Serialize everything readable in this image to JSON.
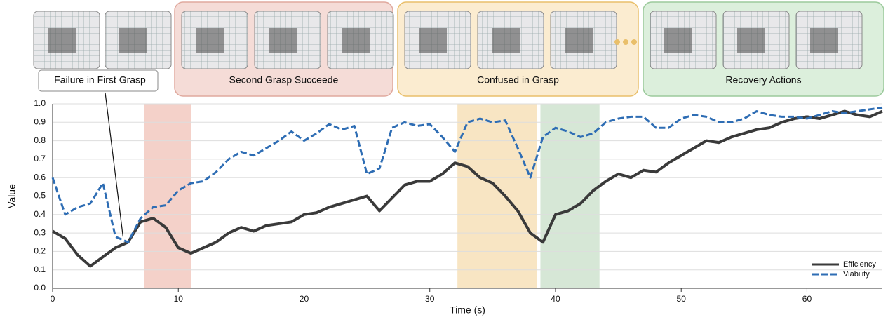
{
  "panels": [
    {
      "label": "Failure in First Grasp",
      "images": 2
    },
    {
      "label": "Second Grasp Succeede",
      "images": 3
    },
    {
      "label": "Confused in Grasp",
      "images": 3
    },
    {
      "label": "Recovery Actions",
      "images": 3
    }
  ],
  "chart_data": {
    "type": "line",
    "x_label": "Time (s)",
    "y_label": "Value",
    "x": [
      0,
      1,
      2,
      3,
      4,
      5,
      6,
      7,
      8,
      9,
      10,
      11,
      12,
      13,
      14,
      15,
      16,
      17,
      18,
      19,
      20,
      21,
      22,
      23,
      24,
      25,
      26,
      27,
      28,
      29,
      30,
      31,
      32,
      33,
      34,
      35,
      36,
      37,
      38,
      39,
      40,
      41,
      42,
      43,
      44,
      45,
      46,
      47,
      48,
      49,
      50,
      51,
      52,
      53,
      54,
      55,
      56,
      57,
      58,
      59,
      60,
      61,
      62,
      63,
      64,
      65,
      66
    ],
    "series": [
      {
        "name": "Efficiency",
        "color": "#3a3a3a",
        "dash": false,
        "values": [
          0.31,
          0.27,
          0.18,
          0.12,
          0.17,
          0.22,
          0.25,
          0.36,
          0.38,
          0.33,
          0.22,
          0.19,
          0.22,
          0.25,
          0.3,
          0.33,
          0.31,
          0.34,
          0.35,
          0.36,
          0.4,
          0.41,
          0.44,
          0.46,
          0.48,
          0.5,
          0.42,
          0.49,
          0.56,
          0.58,
          0.58,
          0.62,
          0.68,
          0.66,
          0.6,
          0.57,
          0.5,
          0.42,
          0.3,
          0.25,
          0.4,
          0.42,
          0.46,
          0.53,
          0.58,
          0.62,
          0.6,
          0.64,
          0.63,
          0.68,
          0.72,
          0.76,
          0.8,
          0.79,
          0.82,
          0.84,
          0.86,
          0.87,
          0.9,
          0.92,
          0.93,
          0.92,
          0.94,
          0.96,
          0.94,
          0.93,
          0.96
        ]
      },
      {
        "name": "Viability",
        "color": "#2e6db4",
        "dash": true,
        "values": [
          0.6,
          0.4,
          0.44,
          0.46,
          0.57,
          0.28,
          0.25,
          0.38,
          0.44,
          0.45,
          0.53,
          0.57,
          0.58,
          0.63,
          0.7,
          0.74,
          0.72,
          0.76,
          0.8,
          0.85,
          0.8,
          0.84,
          0.89,
          0.86,
          0.88,
          0.62,
          0.65,
          0.87,
          0.9,
          0.88,
          0.89,
          0.82,
          0.74,
          0.9,
          0.92,
          0.9,
          0.91,
          0.76,
          0.6,
          0.82,
          0.87,
          0.85,
          0.82,
          0.84,
          0.9,
          0.92,
          0.93,
          0.93,
          0.87,
          0.87,
          0.92,
          0.94,
          0.93,
          0.9,
          0.9,
          0.92,
          0.96,
          0.94,
          0.93,
          0.93,
          0.92,
          0.94,
          0.96,
          0.95,
          0.96,
          0.97,
          0.98
        ]
      }
    ],
    "bands": [
      {
        "x": [
          7.3,
          11
        ],
        "color": "#f2c9c0"
      },
      {
        "x": [
          32.2,
          38.5
        ],
        "color": "#f7e1b8"
      },
      {
        "x": [
          38.8,
          43.5
        ],
        "color": "#cfe3cf"
      }
    ],
    "xlim": [
      0,
      66
    ],
    "ylim": [
      0,
      1
    ],
    "xticks": [
      0,
      10,
      20,
      30,
      40,
      50,
      60
    ],
    "yticks": [
      {
        "value": 0,
        "label": "0.0"
      },
      0.1,
      0.2,
      0.3,
      0.4,
      0.5,
      0.6,
      0.7,
      0.8,
      0.9,
      {
        "value": 1,
        "label": "1.0"
      }
    ],
    "grid": true,
    "legend": "lower right"
  }
}
